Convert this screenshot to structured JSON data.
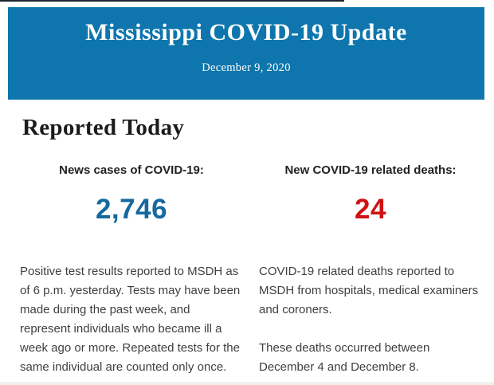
{
  "banner": {
    "title": "Mississippi COVID-19 Update",
    "date": "December 9, 2020",
    "background_color": "#0e76ad",
    "text_color": "#ffffff"
  },
  "section": {
    "title": "Reported Today"
  },
  "stats": {
    "cases": {
      "label": "News cases of COVID-19:",
      "value": "2,746",
      "value_color": "#16699e",
      "paragraphs": [
        "Positive test results reported to MSDH as of 6 p.m. yesterday. Tests may have been made during the past week, and represent individuals who became ill a week ago or more. Repeated tests for the same individual are counted only once."
      ]
    },
    "deaths": {
      "label": "New COVID-19 related deaths:",
      "value": "24",
      "value_color": "#cf1212",
      "paragraphs": [
        "COVID-19 related deaths reported to MSDH from hospitals, medical examiners and coroners.",
        "These deaths occurred between December 4 and December 8."
      ]
    }
  }
}
